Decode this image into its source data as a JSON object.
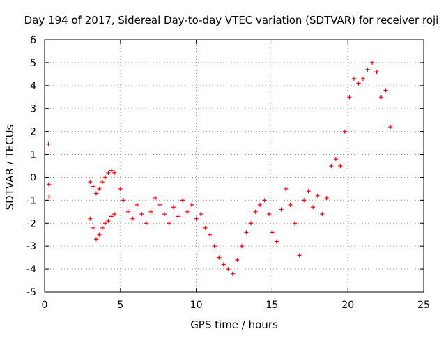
{
  "chart_data": {
    "type": "scatter",
    "title": "Day 194 of 2017, Sidereal Day-to-day VTEC variation (SDTVAR) for receiver roji",
    "xlabel": "GPS time / hours",
    "ylabel": "SDTVAR / TECUs",
    "xlim": [
      0,
      25
    ],
    "ylim": [
      -5,
      6
    ],
    "x_ticks": [
      0,
      5,
      10,
      15,
      20,
      25
    ],
    "y_ticks": [
      -5,
      -4,
      -3,
      -2,
      -1,
      0,
      1,
      2,
      3,
      4,
      5,
      6
    ],
    "x_tick_labels": [
      "0",
      "5",
      "10",
      "15",
      "20",
      "25"
    ],
    "y_tick_labels": [
      "-5",
      "-4",
      "-3",
      "-2",
      "-1",
      "0",
      "1",
      "2",
      "3",
      "4",
      "5",
      "6"
    ],
    "grid": true,
    "grid_style": "dotted",
    "marker": "+",
    "marker_color": "#ff0000",
    "series": [
      {
        "name": "SDTVAR",
        "color": "#ff0000",
        "x": [
          0.25,
          0.27,
          0.29,
          3.0,
          3.2,
          3.4,
          3.6,
          3.8,
          4.0,
          4.2,
          4.4,
          4.6,
          3.0,
          3.2,
          3.4,
          3.6,
          3.8,
          4.0,
          4.2,
          4.4,
          4.6,
          5.0,
          5.2,
          5.5,
          5.8,
          6.1,
          6.4,
          6.7,
          7.0,
          7.3,
          7.6,
          7.9,
          8.2,
          8.5,
          8.8,
          9.1,
          9.4,
          9.7,
          10.0,
          10.3,
          10.6,
          10.9,
          11.2,
          11.5,
          11.8,
          12.1,
          12.4,
          12.7,
          13.0,
          13.3,
          13.6,
          13.9,
          14.2,
          14.5,
          14.8,
          15.0,
          15.3,
          15.6,
          15.9,
          16.2,
          16.5,
          16.8,
          17.1,
          17.4,
          17.7,
          18.0,
          18.3,
          18.6,
          18.9,
          19.2,
          19.5,
          19.8,
          20.1,
          20.4,
          20.7,
          21.0,
          21.3,
          21.6,
          21.9,
          22.2,
          22.5,
          22.8
        ],
        "y": [
          1.45,
          -0.3,
          -0.85,
          -0.2,
          -0.4,
          -0.7,
          -0.5,
          -0.2,
          0.0,
          0.2,
          0.3,
          0.2,
          -1.8,
          -2.2,
          -2.7,
          -2.5,
          -2.2,
          -2.0,
          -1.9,
          -1.7,
          -1.6,
          -0.5,
          -1.0,
          -1.5,
          -1.8,
          -1.2,
          -1.6,
          -2.0,
          -1.5,
          -0.9,
          -1.2,
          -1.6,
          -2.0,
          -1.3,
          -1.7,
          -1.0,
          -1.5,
          -1.2,
          -1.8,
          -1.6,
          -2.2,
          -2.5,
          -3.0,
          -3.5,
          -3.8,
          -4.0,
          -4.2,
          -3.6,
          -3.0,
          -2.4,
          -2.0,
          -1.5,
          -1.2,
          -1.0,
          -1.6,
          -2.4,
          -2.8,
          -1.4,
          -0.5,
          -1.2,
          -2.0,
          -3.4,
          -1.0,
          -0.6,
          -1.3,
          -0.8,
          -1.6,
          -0.9,
          0.5,
          0.8,
          0.5,
          2.0,
          3.5,
          4.3,
          4.1,
          4.3,
          4.7,
          5.0,
          4.6,
          3.5,
          3.8,
          2.2
        ]
      }
    ]
  }
}
